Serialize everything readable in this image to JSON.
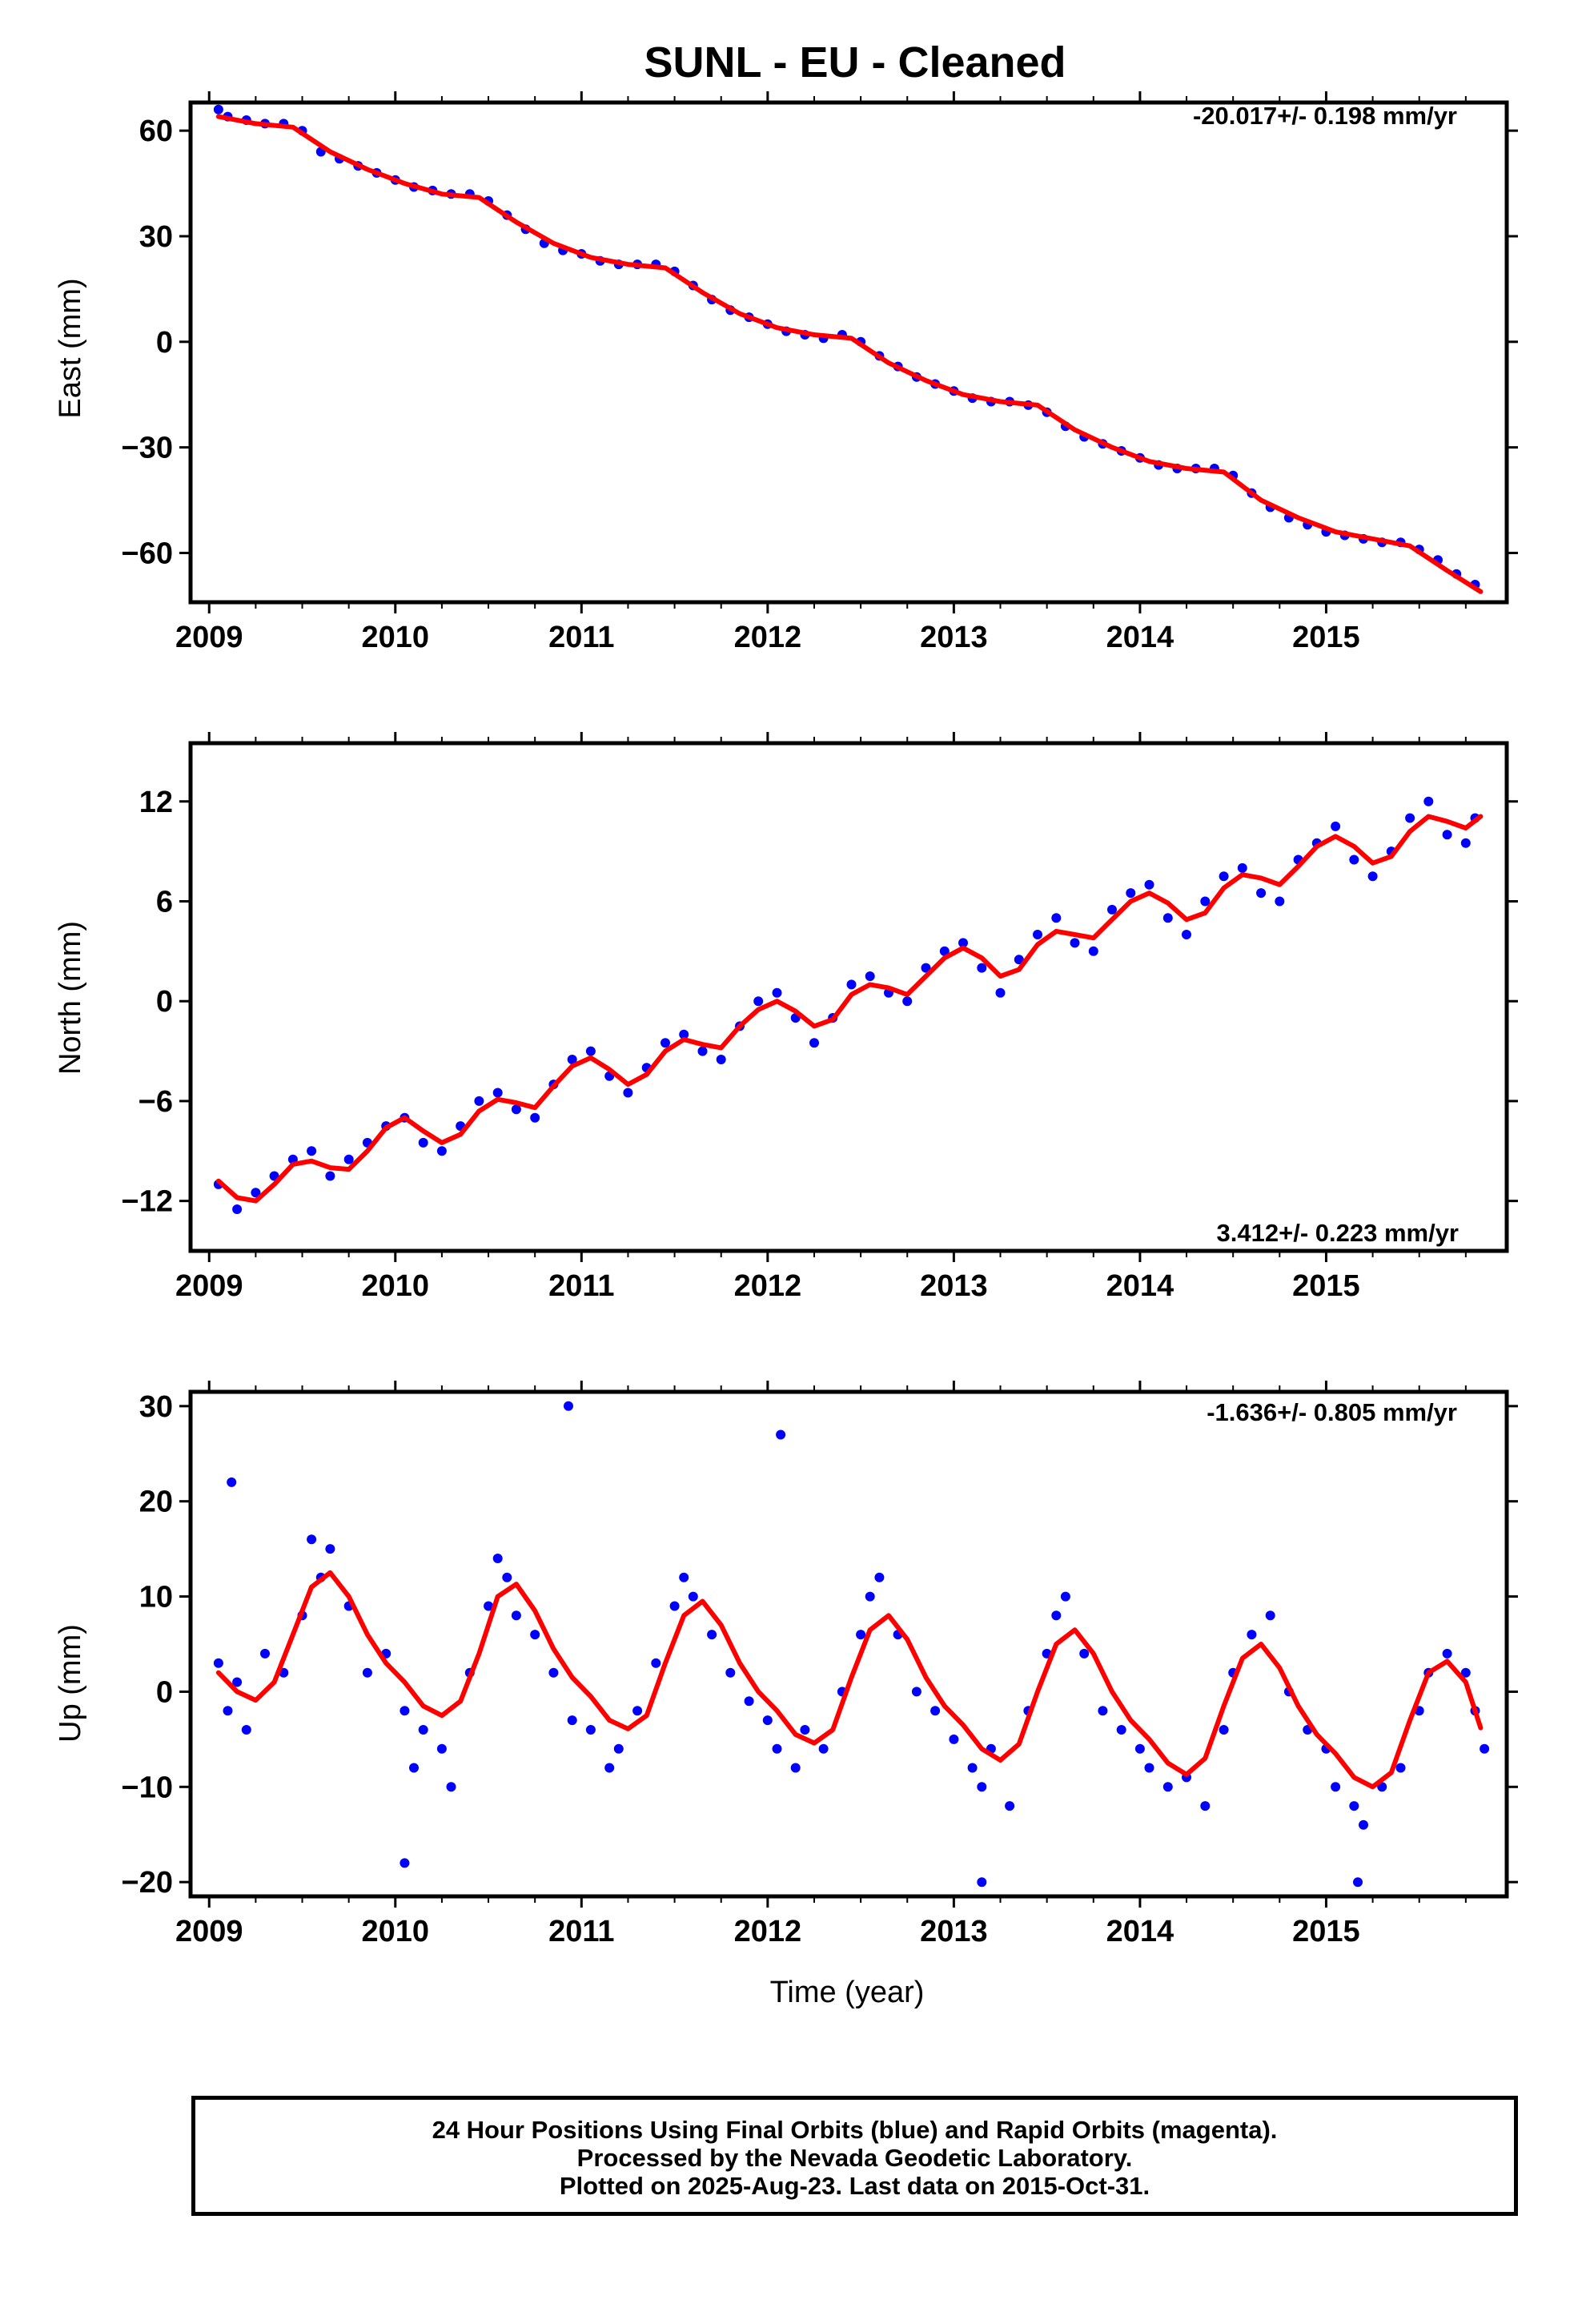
{
  "title": "SUNL  - EU - Cleaned",
  "xlabel": "Time (year)",
  "colors": {
    "points": "#0000ff",
    "fit": "#ff0000",
    "frame": "#000000"
  },
  "footer": {
    "line1": "24 Hour Positions Using Final Orbits (blue) and Rapid Orbits (magenta).",
    "line2": "Processed by the Nevada Geodetic Laboratory.",
    "line3": "Plotted on 2025-Aug-23. Last data on 2015-Oct-31."
  },
  "chart_data": [
    {
      "type": "scatter",
      "panel": "east",
      "ylabel": "East (mm)",
      "rate_label": "-20.017+/- 0.198 mm/yr",
      "rate_label_position": "top-right",
      "xlim": [
        2008.9,
        2015.97
      ],
      "ylim": [
        -74,
        68
      ],
      "xticks": [
        2009,
        2010,
        2011,
        2012,
        2013,
        2014,
        2015
      ],
      "yticks": [
        60,
        30,
        0,
        -30,
        -60
      ],
      "ytick_labels": [
        "60",
        "30",
        "0",
        "−30",
        "−60"
      ],
      "fit_curve": {
        "name": "fit",
        "x": [
          2009.05,
          2009.25,
          2009.45,
          2009.65,
          2009.85,
          2010.05,
          2010.25,
          2010.45,
          2010.65,
          2010.85,
          2011.05,
          2011.25,
          2011.45,
          2011.65,
          2011.85,
          2012.05,
          2012.25,
          2012.45,
          2012.65,
          2012.85,
          2013.05,
          2013.25,
          2013.45,
          2013.65,
          2013.85,
          2014.05,
          2014.25,
          2014.45,
          2014.65,
          2014.85,
          2015.05,
          2015.25,
          2015.45,
          2015.65,
          2015.83
        ],
        "y": [
          64,
          62,
          61,
          54,
          49,
          45,
          42,
          41,
          34,
          28,
          24,
          22,
          21,
          14,
          8,
          4,
          2,
          1,
          -6,
          -11,
          -15,
          -17,
          -18,
          -25,
          -30,
          -34,
          -36,
          -37,
          -45,
          -50,
          -54,
          -56,
          -58,
          -65,
          -71
        ]
      },
      "points": {
        "x": [
          2009.05,
          2009.1,
          2009.2,
          2009.3,
          2009.4,
          2009.5,
          2009.6,
          2009.7,
          2009.8,
          2009.9,
          2010.0,
          2010.1,
          2010.2,
          2010.3,
          2010.4,
          2010.5,
          2010.6,
          2010.7,
          2010.8,
          2010.9,
          2011.0,
          2011.1,
          2011.2,
          2011.3,
          2011.4,
          2011.5,
          2011.6,
          2011.7,
          2011.8,
          2011.9,
          2012.0,
          2012.1,
          2012.2,
          2012.3,
          2012.4,
          2012.5,
          2012.6,
          2012.7,
          2012.8,
          2012.9,
          2013.0,
          2013.1,
          2013.2,
          2013.3,
          2013.4,
          2013.5,
          2013.6,
          2013.7,
          2013.8,
          2013.9,
          2014.0,
          2014.1,
          2014.2,
          2014.3,
          2014.4,
          2014.5,
          2014.6,
          2014.7,
          2014.8,
          2014.9,
          2015.0,
          2015.1,
          2015.2,
          2015.3,
          2015.4,
          2015.5,
          2015.6,
          2015.7,
          2015.8
        ],
        "y": [
          66,
          64,
          63,
          62,
          62,
          60,
          54,
          52,
          50,
          48,
          46,
          44,
          43,
          42,
          42,
          40,
          36,
          32,
          28,
          26,
          25,
          23,
          22,
          22,
          22,
          20,
          16,
          12,
          9,
          7,
          5,
          3,
          2,
          1,
          2,
          0,
          -4,
          -7,
          -10,
          -12,
          -14,
          -16,
          -17,
          -17,
          -18,
          -20,
          -24,
          -27,
          -29,
          -31,
          -33,
          -35,
          -36,
          -36,
          -36,
          -38,
          -43,
          -47,
          -50,
          -52,
          -54,
          -55,
          -56,
          -57,
          -57,
          -59,
          -62,
          -66,
          -69
        ]
      }
    },
    {
      "type": "scatter",
      "panel": "north",
      "ylabel": "North (mm)",
      "rate_label": "3.412+/- 0.223 mm/yr",
      "rate_label_position": "bottom-right",
      "xlim": [
        2008.9,
        2015.97
      ],
      "ylim": [
        -15,
        15.5
      ],
      "xticks": [
        2009,
        2010,
        2011,
        2012,
        2013,
        2014,
        2015
      ],
      "yticks": [
        12,
        6,
        0,
        -6,
        -12
      ],
      "ytick_labels": [
        "12",
        "6",
        "0",
        "−6",
        "−12"
      ],
      "fit_curve": {
        "name": "fit",
        "x": [
          2009.05,
          2009.15,
          2009.25,
          2009.35,
          2009.45,
          2009.55,
          2009.65,
          2009.75,
          2009.85,
          2009.95,
          2010.05,
          2010.15,
          2010.25,
          2010.35,
          2010.45,
          2010.55,
          2010.65,
          2010.75,
          2010.85,
          2010.95,
          2011.05,
          2011.15,
          2011.25,
          2011.35,
          2011.45,
          2011.55,
          2011.65,
          2011.75,
          2011.85,
          2011.95,
          2012.05,
          2012.15,
          2012.25,
          2012.35,
          2012.45,
          2012.55,
          2012.65,
          2012.75,
          2012.85,
          2012.95,
          2013.05,
          2013.15,
          2013.25,
          2013.35,
          2013.45,
          2013.55,
          2013.65,
          2013.75,
          2013.85,
          2013.95,
          2014.05,
          2014.15,
          2014.25,
          2014.35,
          2014.45,
          2014.55,
          2014.65,
          2014.75,
          2014.85,
          2014.95,
          2015.05,
          2015.15,
          2015.25,
          2015.35,
          2015.45,
          2015.55,
          2015.65,
          2015.75,
          2015.83
        ],
        "y": [
          -10.8,
          -11.8,
          -12,
          -11,
          -9.8,
          -9.6,
          -10,
          -10.1,
          -9,
          -7.6,
          -7,
          -7.8,
          -8.5,
          -8,
          -6.6,
          -5.9,
          -6.1,
          -6.4,
          -5.1,
          -3.9,
          -3.4,
          -4.1,
          -5,
          -4.4,
          -3,
          -2.3,
          -2.6,
          -2.8,
          -1.5,
          -0.5,
          0,
          -0.6,
          -1.5,
          -1.1,
          0.4,
          1,
          0.8,
          0.4,
          1.5,
          2.6,
          3.2,
          2.6,
          1.5,
          1.9,
          3.4,
          4.2,
          4,
          3.8,
          4.9,
          6,
          6.5,
          5.9,
          4.9,
          5.3,
          6.8,
          7.6,
          7.4,
          7,
          8.1,
          9.3,
          9.9,
          9.3,
          8.3,
          8.7,
          10.2,
          11.1,
          10.8,
          10.4,
          11.1
        ]
      },
      "points": {
        "x": [
          2009.05,
          2009.15,
          2009.25,
          2009.35,
          2009.45,
          2009.55,
          2009.65,
          2009.75,
          2009.85,
          2009.95,
          2010.05,
          2010.15,
          2010.25,
          2010.35,
          2010.45,
          2010.55,
          2010.65,
          2010.75,
          2010.85,
          2010.95,
          2011.05,
          2011.15,
          2011.25,
          2011.35,
          2011.45,
          2011.55,
          2011.65,
          2011.75,
          2011.85,
          2011.95,
          2012.05,
          2012.15,
          2012.25,
          2012.35,
          2012.45,
          2012.55,
          2012.65,
          2012.75,
          2012.85,
          2012.95,
          2013.05,
          2013.15,
          2013.25,
          2013.35,
          2013.45,
          2013.55,
          2013.65,
          2013.75,
          2013.85,
          2013.95,
          2014.05,
          2014.15,
          2014.25,
          2014.35,
          2014.45,
          2014.55,
          2014.65,
          2014.75,
          2014.85,
          2014.95,
          2015.05,
          2015.15,
          2015.25,
          2015.35,
          2015.45,
          2015.55,
          2015.65,
          2015.75,
          2015.8
        ],
        "y": [
          -11,
          -12.5,
          -11.5,
          -10.5,
          -9.5,
          -9,
          -10.5,
          -9.5,
          -8.5,
          -7.5,
          -7,
          -8.5,
          -9,
          -7.5,
          -6,
          -5.5,
          -6.5,
          -7,
          -5,
          -3.5,
          -3,
          -4.5,
          -5.5,
          -4,
          -2.5,
          -2,
          -3,
          -3.5,
          -1.5,
          0,
          0.5,
          -1,
          -2.5,
          -1,
          1,
          1.5,
          0.5,
          0,
          2,
          3,
          3.5,
          2,
          0.5,
          2.5,
          4,
          5,
          3.5,
          3,
          5.5,
          6.5,
          7,
          5,
          4,
          6,
          7.5,
          8,
          6.5,
          6,
          8.5,
          9.5,
          10.5,
          8.5,
          7.5,
          9,
          11,
          12,
          10,
          9.5,
          11
        ]
      }
    },
    {
      "type": "scatter",
      "panel": "up",
      "ylabel": "Up (mm)",
      "rate_label": "-1.636+/- 0.805 mm/yr",
      "rate_label_position": "top-right",
      "xlim": [
        2008.9,
        2015.97
      ],
      "ylim": [
        -21.5,
        31.5
      ],
      "xticks": [
        2009,
        2010,
        2011,
        2012,
        2013,
        2014,
        2015
      ],
      "yticks": [
        30,
        20,
        10,
        0,
        -10,
        -20
      ],
      "ytick_labels": [
        "30",
        "20",
        "10",
        "0",
        "−10",
        "−20"
      ],
      "fit_curve": {
        "name": "fit",
        "x": [
          2009.05,
          2009.15,
          2009.25,
          2009.35,
          2009.45,
          2009.55,
          2009.65,
          2009.75,
          2009.85,
          2009.95,
          2010.05,
          2010.15,
          2010.25,
          2010.35,
          2010.45,
          2010.55,
          2010.65,
          2010.75,
          2010.85,
          2010.95,
          2011.05,
          2011.15,
          2011.25,
          2011.35,
          2011.45,
          2011.55,
          2011.65,
          2011.75,
          2011.85,
          2011.95,
          2012.05,
          2012.15,
          2012.25,
          2012.35,
          2012.45,
          2012.55,
          2012.65,
          2012.75,
          2012.85,
          2012.95,
          2013.05,
          2013.15,
          2013.25,
          2013.35,
          2013.45,
          2013.55,
          2013.65,
          2013.75,
          2013.85,
          2013.95,
          2014.05,
          2014.15,
          2014.25,
          2014.35,
          2014.45,
          2014.55,
          2014.65,
          2014.75,
          2014.85,
          2014.95,
          2015.05,
          2015.15,
          2015.25,
          2015.35,
          2015.45,
          2015.55,
          2015.65,
          2015.75,
          2015.83
        ],
        "y": [
          2,
          0,
          -0.9,
          1,
          6,
          11,
          12.5,
          10,
          6,
          3,
          1,
          -1.5,
          -2.5,
          -1,
          4,
          10,
          11.3,
          8.5,
          4.5,
          1.5,
          -0.5,
          -3,
          -3.9,
          -2.5,
          3,
          8,
          9.5,
          7,
          3,
          0,
          -2,
          -4.5,
          -5.4,
          -4,
          1.5,
          6.5,
          8,
          5.5,
          1.5,
          -1.5,
          -3.5,
          -6,
          -7.2,
          -5.5,
          0,
          5,
          6.5,
          4,
          0,
          -3,
          -5,
          -7.5,
          -8.7,
          -7,
          -1.5,
          3.5,
          5,
          2.5,
          -1.5,
          -4.5,
          -6.5,
          -9,
          -10,
          -8.5,
          -3,
          2,
          3.2,
          1,
          -3.8
        ]
      },
      "points": {
        "x": [
          2009.05,
          2009.1,
          2009.15,
          2009.2,
          2009.3,
          2009.4,
          2009.5,
          2009.55,
          2009.6,
          2009.65,
          2009.75,
          2009.85,
          2009.95,
          2010.05,
          2010.1,
          2010.15,
          2010.25,
          2010.3,
          2010.4,
          2010.5,
          2010.55,
          2010.6,
          2010.65,
          2010.75,
          2010.85,
          2010.95,
          2011.05,
          2011.15,
          2011.2,
          2011.3,
          2011.4,
          2011.5,
          2011.55,
          2011.6,
          2011.7,
          2011.8,
          2011.9,
          2012.0,
          2012.05,
          2012.15,
          2012.2,
          2012.3,
          2012.4,
          2012.5,
          2012.55,
          2012.6,
          2012.7,
          2012.8,
          2012.9,
          2013.0,
          2013.1,
          2013.15,
          2013.2,
          2013.3,
          2013.4,
          2013.5,
          2013.55,
          2013.6,
          2013.7,
          2013.8,
          2013.9,
          2014.0,
          2014.05,
          2014.15,
          2014.25,
          2014.35,
          2014.45,
          2014.5,
          2014.6,
          2014.7,
          2014.8,
          2014.9,
          2015.0,
          2015.05,
          2015.15,
          2015.2,
          2015.3,
          2015.4,
          2015.5,
          2015.55,
          2015.65,
          2015.75,
          2015.8,
          2015.85,
          2010.93,
          2012.07,
          2009.12,
          2010.05,
          2013.15,
          2015.17
        ],
        "y": [
          3,
          -2,
          1,
          -4,
          4,
          2,
          8,
          16,
          12,
          15,
          9,
          2,
          4,
          -2,
          -8,
          -4,
          -6,
          -10,
          2,
          9,
          14,
          12,
          8,
          6,
          2,
          -3,
          -4,
          -8,
          -6,
          -2,
          3,
          9,
          12,
          10,
          6,
          2,
          -1,
          -3,
          -6,
          -8,
          -4,
          -6,
          0,
          6,
          10,
          12,
          6,
          0,
          -2,
          -5,
          -8,
          -10,
          -6,
          -12,
          -2,
          4,
          8,
          10,
          4,
          -2,
          -4,
          -6,
          -8,
          -10,
          -9,
          -12,
          -4,
          2,
          6,
          8,
          0,
          -4,
          -6,
          -10,
          -12,
          -14,
          -10,
          -8,
          -2,
          2,
          4,
          2,
          -2,
          -6,
          30,
          27,
          22,
          -18,
          -20,
          -20
        ]
      }
    }
  ]
}
